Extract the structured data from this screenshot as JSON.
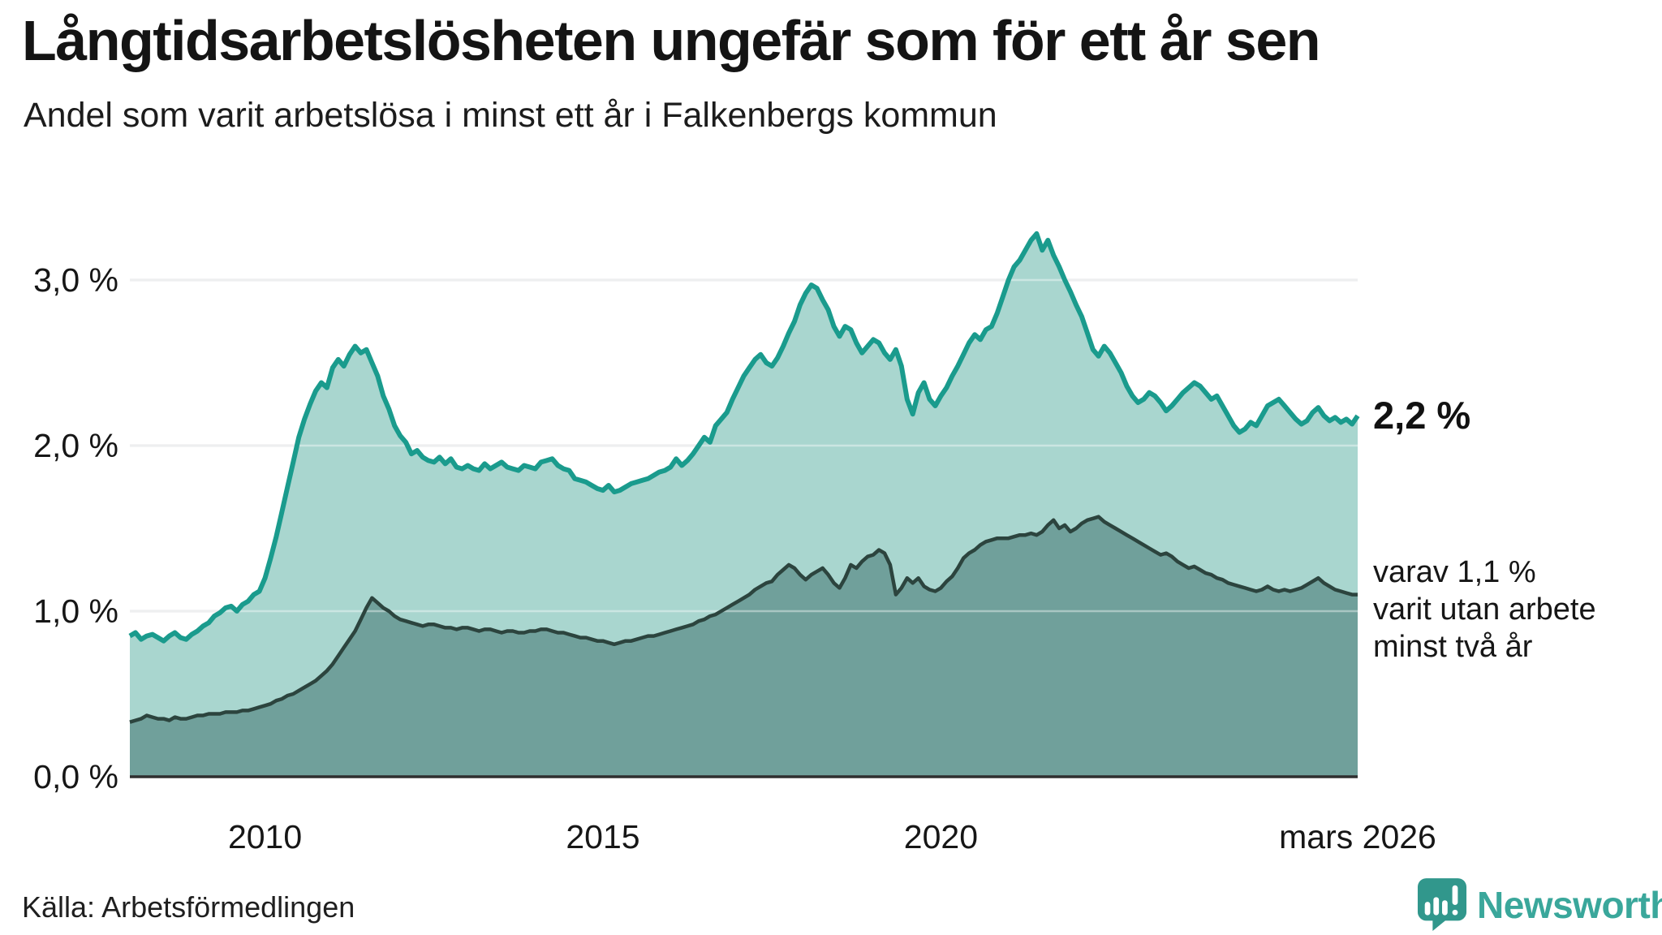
{
  "header": {
    "title": "Långtidsarbetslösheten ungefär som för ett år sen",
    "subtitle": "Andel som varit arbetslösa i minst ett år i Falkenbergs kommun"
  },
  "annotations": {
    "total_end_label": "2,2 %",
    "note_lines": [
      "varav 1,1 %",
      "varit utan arbete",
      "minst två år"
    ]
  },
  "source": {
    "label": "Källa: Arbetsförmedlingen"
  },
  "branding": {
    "name": "Newsworthy",
    "icon": "bar-chart-speech-bubble-icon",
    "mark_color": "#31978c",
    "text_color": "#3aa79b"
  },
  "colors": {
    "background": "#ffffff",
    "gridline": "#e3e5e6",
    "grid_overlay": "rgba(255,255,255,0.4)",
    "axis_line": "#2f2f2f",
    "text": "#1a1a1a"
  },
  "chart_data": {
    "type": "area",
    "title": "Långtidsarbetslösheten ungefär som för ett år sen",
    "subtitle": "Andel som varit arbetslösa i minst ett år i Falkenbergs kommun",
    "unit": "%",
    "grid": true,
    "legend": "none",
    "x_axis": {
      "start_year": 2008,
      "start_month": 1,
      "end_label_year": 2026.17,
      "ticks": [
        {
          "label": "2010",
          "year": 2010
        },
        {
          "label": "2015",
          "year": 2015
        },
        {
          "label": "2020",
          "year": 2020
        },
        {
          "label": "mars 2026",
          "year": 2026.17
        }
      ]
    },
    "y_axis": {
      "range": [
        0,
        3.4
      ],
      "ticks": [
        {
          "label": "0,0 %",
          "value": 0
        },
        {
          "label": "1,0 %",
          "value": 1
        },
        {
          "label": "2,0 %",
          "value": 2
        },
        {
          "label": "3,0 %",
          "value": 3
        }
      ]
    },
    "series": [
      {
        "id": "total",
        "name": "Arbetslösa minst ett år",
        "end_value": 2.2,
        "line_color": "#1a9b8d",
        "fill_color": "#a9d6cf",
        "line_width": 6,
        "start_year": 2008,
        "start_month": 1,
        "values": [
          0.85,
          0.87,
          0.83,
          0.85,
          0.86,
          0.84,
          0.82,
          0.85,
          0.87,
          0.84,
          0.83,
          0.86,
          0.88,
          0.91,
          0.93,
          0.97,
          0.99,
          1.02,
          1.03,
          1.0,
          1.04,
          1.06,
          1.1,
          1.12,
          1.2,
          1.32,
          1.45,
          1.6,
          1.75,
          1.9,
          2.05,
          2.16,
          2.25,
          2.33,
          2.38,
          2.35,
          2.47,
          2.52,
          2.48,
          2.55,
          2.6,
          2.56,
          2.58,
          2.5,
          2.42,
          2.3,
          2.22,
          2.12,
          2.06,
          2.02,
          1.95,
          1.97,
          1.93,
          1.91,
          1.9,
          1.93,
          1.89,
          1.92,
          1.87,
          1.86,
          1.88,
          1.86,
          1.85,
          1.89,
          1.86,
          1.88,
          1.9,
          1.87,
          1.86,
          1.85,
          1.88,
          1.87,
          1.86,
          1.9,
          1.91,
          1.92,
          1.88,
          1.86,
          1.85,
          1.8,
          1.79,
          1.78,
          1.76,
          1.74,
          1.73,
          1.76,
          1.72,
          1.73,
          1.75,
          1.77,
          1.78,
          1.79,
          1.8,
          1.82,
          1.84,
          1.85,
          1.87,
          1.92,
          1.88,
          1.91,
          1.95,
          2.0,
          2.05,
          2.02,
          2.12,
          2.16,
          2.2,
          2.28,
          2.35,
          2.42,
          2.47,
          2.52,
          2.55,
          2.5,
          2.48,
          2.53,
          2.6,
          2.68,
          2.75,
          2.85,
          2.92,
          2.97,
          2.95,
          2.88,
          2.82,
          2.72,
          2.66,
          2.72,
          2.7,
          2.62,
          2.56,
          2.6,
          2.64,
          2.62,
          2.56,
          2.52,
          2.58,
          2.48,
          2.28,
          2.19,
          2.32,
          2.38,
          2.28,
          2.24,
          2.3,
          2.35,
          2.42,
          2.48,
          2.55,
          2.62,
          2.67,
          2.64,
          2.7,
          2.72,
          2.8,
          2.9,
          3.0,
          3.08,
          3.12,
          3.18,
          3.24,
          3.28,
          3.18,
          3.24,
          3.15,
          3.08,
          3.0,
          2.93,
          2.85,
          2.78,
          2.68,
          2.58,
          2.54,
          2.6,
          2.56,
          2.5,
          2.44,
          2.36,
          2.3,
          2.26,
          2.28,
          2.32,
          2.3,
          2.26,
          2.21,
          2.24,
          2.28,
          2.32,
          2.35,
          2.38,
          2.36,
          2.32,
          2.28,
          2.3,
          2.24,
          2.18,
          2.12,
          2.08,
          2.1,
          2.14,
          2.12,
          2.18,
          2.24,
          2.26,
          2.28,
          2.24,
          2.2,
          2.16,
          2.13,
          2.15,
          2.2,
          2.23,
          2.18,
          2.15,
          2.17,
          2.14,
          2.16,
          2.13,
          2.18
        ]
      },
      {
        "id": "two_years",
        "name": "Varav utan arbete minst två år",
        "end_value": 1.1,
        "line_color": "#2c443e",
        "fill_color": "#70a09b",
        "line_width": 4.5,
        "start_year": 2008,
        "start_month": 1,
        "values": [
          0.33,
          0.34,
          0.35,
          0.37,
          0.36,
          0.35,
          0.35,
          0.34,
          0.36,
          0.35,
          0.35,
          0.36,
          0.37,
          0.37,
          0.38,
          0.38,
          0.38,
          0.39,
          0.39,
          0.39,
          0.4,
          0.4,
          0.41,
          0.42,
          0.43,
          0.44,
          0.46,
          0.47,
          0.49,
          0.5,
          0.52,
          0.54,
          0.56,
          0.58,
          0.61,
          0.64,
          0.68,
          0.73,
          0.78,
          0.83,
          0.88,
          0.95,
          1.02,
          1.08,
          1.05,
          1.02,
          1.0,
          0.97,
          0.95,
          0.94,
          0.93,
          0.92,
          0.91,
          0.92,
          0.92,
          0.91,
          0.9,
          0.9,
          0.89,
          0.9,
          0.9,
          0.89,
          0.88,
          0.89,
          0.89,
          0.88,
          0.87,
          0.88,
          0.88,
          0.87,
          0.87,
          0.88,
          0.88,
          0.89,
          0.89,
          0.88,
          0.87,
          0.87,
          0.86,
          0.85,
          0.84,
          0.84,
          0.83,
          0.82,
          0.82,
          0.81,
          0.8,
          0.81,
          0.82,
          0.82,
          0.83,
          0.84,
          0.85,
          0.85,
          0.86,
          0.87,
          0.88,
          0.89,
          0.9,
          0.91,
          0.92,
          0.94,
          0.95,
          0.97,
          0.98,
          1.0,
          1.02,
          1.04,
          1.06,
          1.08,
          1.1,
          1.13,
          1.15,
          1.17,
          1.18,
          1.22,
          1.25,
          1.28,
          1.26,
          1.22,
          1.19,
          1.22,
          1.24,
          1.26,
          1.22,
          1.17,
          1.14,
          1.2,
          1.28,
          1.26,
          1.3,
          1.33,
          1.34,
          1.37,
          1.35,
          1.28,
          1.1,
          1.14,
          1.2,
          1.17,
          1.2,
          1.15,
          1.13,
          1.12,
          1.14,
          1.18,
          1.21,
          1.26,
          1.32,
          1.35,
          1.37,
          1.4,
          1.42,
          1.43,
          1.44,
          1.44,
          1.44,
          1.45,
          1.46,
          1.46,
          1.47,
          1.46,
          1.48,
          1.52,
          1.55,
          1.5,
          1.52,
          1.48,
          1.5,
          1.53,
          1.55,
          1.56,
          1.57,
          1.54,
          1.52,
          1.5,
          1.48,
          1.46,
          1.44,
          1.42,
          1.4,
          1.38,
          1.36,
          1.34,
          1.35,
          1.33,
          1.3,
          1.28,
          1.26,
          1.27,
          1.25,
          1.23,
          1.22,
          1.2,
          1.19,
          1.17,
          1.16,
          1.15,
          1.14,
          1.13,
          1.12,
          1.13,
          1.15,
          1.13,
          1.12,
          1.13,
          1.12,
          1.13,
          1.14,
          1.16,
          1.18,
          1.2,
          1.17,
          1.15,
          1.13,
          1.12,
          1.11,
          1.1,
          1.1
        ]
      }
    ]
  }
}
